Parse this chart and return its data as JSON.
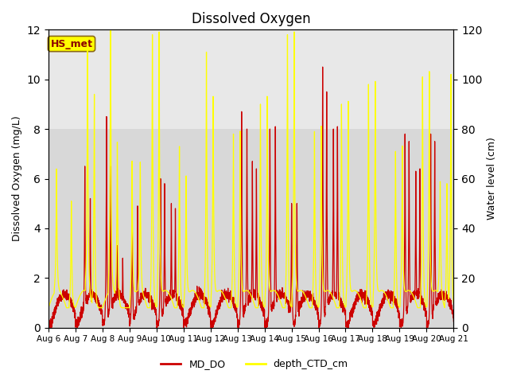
{
  "title": "Dissolved Oxygen",
  "ylabel_left": "Dissolved Oxygen (mg/L)",
  "ylabel_right": "Water level (cm)",
  "ylim_left": [
    0,
    12
  ],
  "ylim_right": [
    0,
    120
  ],
  "x_tick_labels": [
    "Aug 6",
    "Aug 7",
    "Aug 8",
    "Aug 9",
    "Aug 10",
    "Aug 11",
    "Aug 12",
    "Aug 13",
    "Aug 14",
    "Aug 15",
    "Aug 16",
    "Aug 17",
    "Aug 18",
    "Aug 19",
    "Aug 20",
    "Aug 21"
  ],
  "shade_lower_color": "#d8d8d8",
  "shade_upper_color": "#e8e8e8",
  "line_do_color": "#cc0000",
  "line_depth_color": "#ffff00",
  "legend_labels": [
    "MD_DO",
    "depth_CTD_cm"
  ],
  "label_text": "HS_met",
  "label_bg": "#ffff00",
  "label_border": "#8B6914",
  "label_text_color": "#8B0000",
  "title_fontsize": 12
}
